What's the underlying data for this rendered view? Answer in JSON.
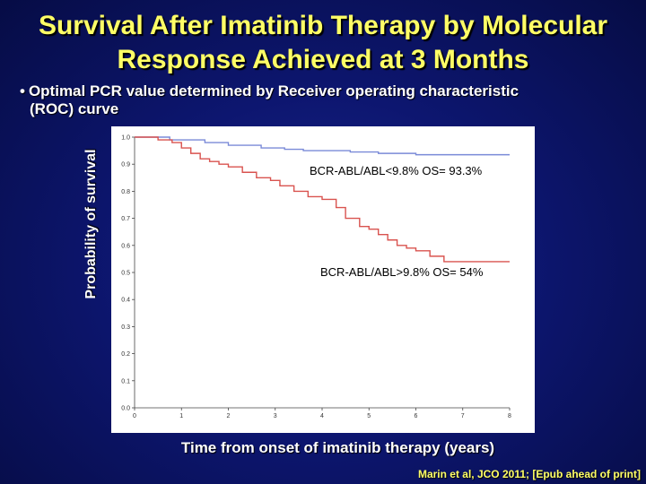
{
  "slide": {
    "title_line1": "Survival After Imatinib Therapy by Molecular",
    "title_line2": "Response Achieved at 3 Months",
    "bullet_line1": "Optimal PCR value determined by Receiver operating characteristic",
    "bullet_line2": "(ROC) curve",
    "citation": "Marin et al, JCO 2011; [Epub ahead of print]"
  },
  "chart_data": {
    "type": "line",
    "xlabel": "Time from onset of imatinib therapy (years)",
    "ylabel": "Probability of survival",
    "xlim": [
      0,
      8
    ],
    "ylim": [
      0,
      1
    ],
    "x_ticks": [
      "0",
      "1",
      "2",
      "3",
      "4",
      "5",
      "6",
      "7",
      "8"
    ],
    "y_ticks": [
      "0.0",
      "0.1",
      "0.2",
      "0.3",
      "0.4",
      "0.5",
      "0.6",
      "0.7",
      "0.8",
      "0.9",
      "1.0"
    ],
    "grid": false,
    "colors": {
      "low": "#7a8ad8",
      "high": "#d9534f"
    },
    "annotations": {
      "low": "BCR-ABL/ABL<9.8% OS= 93.3%",
      "high": "BCR-ABL/ABL>9.8% OS= 54%"
    },
    "series": [
      {
        "key": "low",
        "x": [
          0,
          0.5,
          0.75,
          1.3,
          1.5,
          2.0,
          2.3,
          2.7,
          3.0,
          3.2,
          3.6,
          4.2,
          4.6,
          4.9,
          5.2,
          5.6,
          6.0,
          6.5,
          7.0,
          7.5,
          8.0
        ],
        "y": [
          1.0,
          1.0,
          0.99,
          0.99,
          0.98,
          0.97,
          0.97,
          0.96,
          0.96,
          0.955,
          0.95,
          0.95,
          0.945,
          0.945,
          0.94,
          0.94,
          0.935,
          0.935,
          0.935,
          0.935,
          0.935
        ]
      },
      {
        "key": "high",
        "x": [
          0,
          0.3,
          0.5,
          0.8,
          1.0,
          1.2,
          1.4,
          1.6,
          1.8,
          2.0,
          2.3,
          2.6,
          2.9,
          3.1,
          3.4,
          3.7,
          4.0,
          4.3,
          4.5,
          4.8,
          5.0,
          5.2,
          5.4,
          5.6,
          5.8,
          6.0,
          6.3,
          6.6,
          7.0,
          7.5,
          8.0
        ],
        "y": [
          1.0,
          1.0,
          0.99,
          0.98,
          0.96,
          0.94,
          0.92,
          0.91,
          0.9,
          0.89,
          0.87,
          0.85,
          0.84,
          0.82,
          0.8,
          0.78,
          0.77,
          0.74,
          0.7,
          0.67,
          0.66,
          0.64,
          0.62,
          0.6,
          0.59,
          0.58,
          0.56,
          0.54,
          0.54,
          0.54,
          0.54
        ]
      }
    ]
  }
}
